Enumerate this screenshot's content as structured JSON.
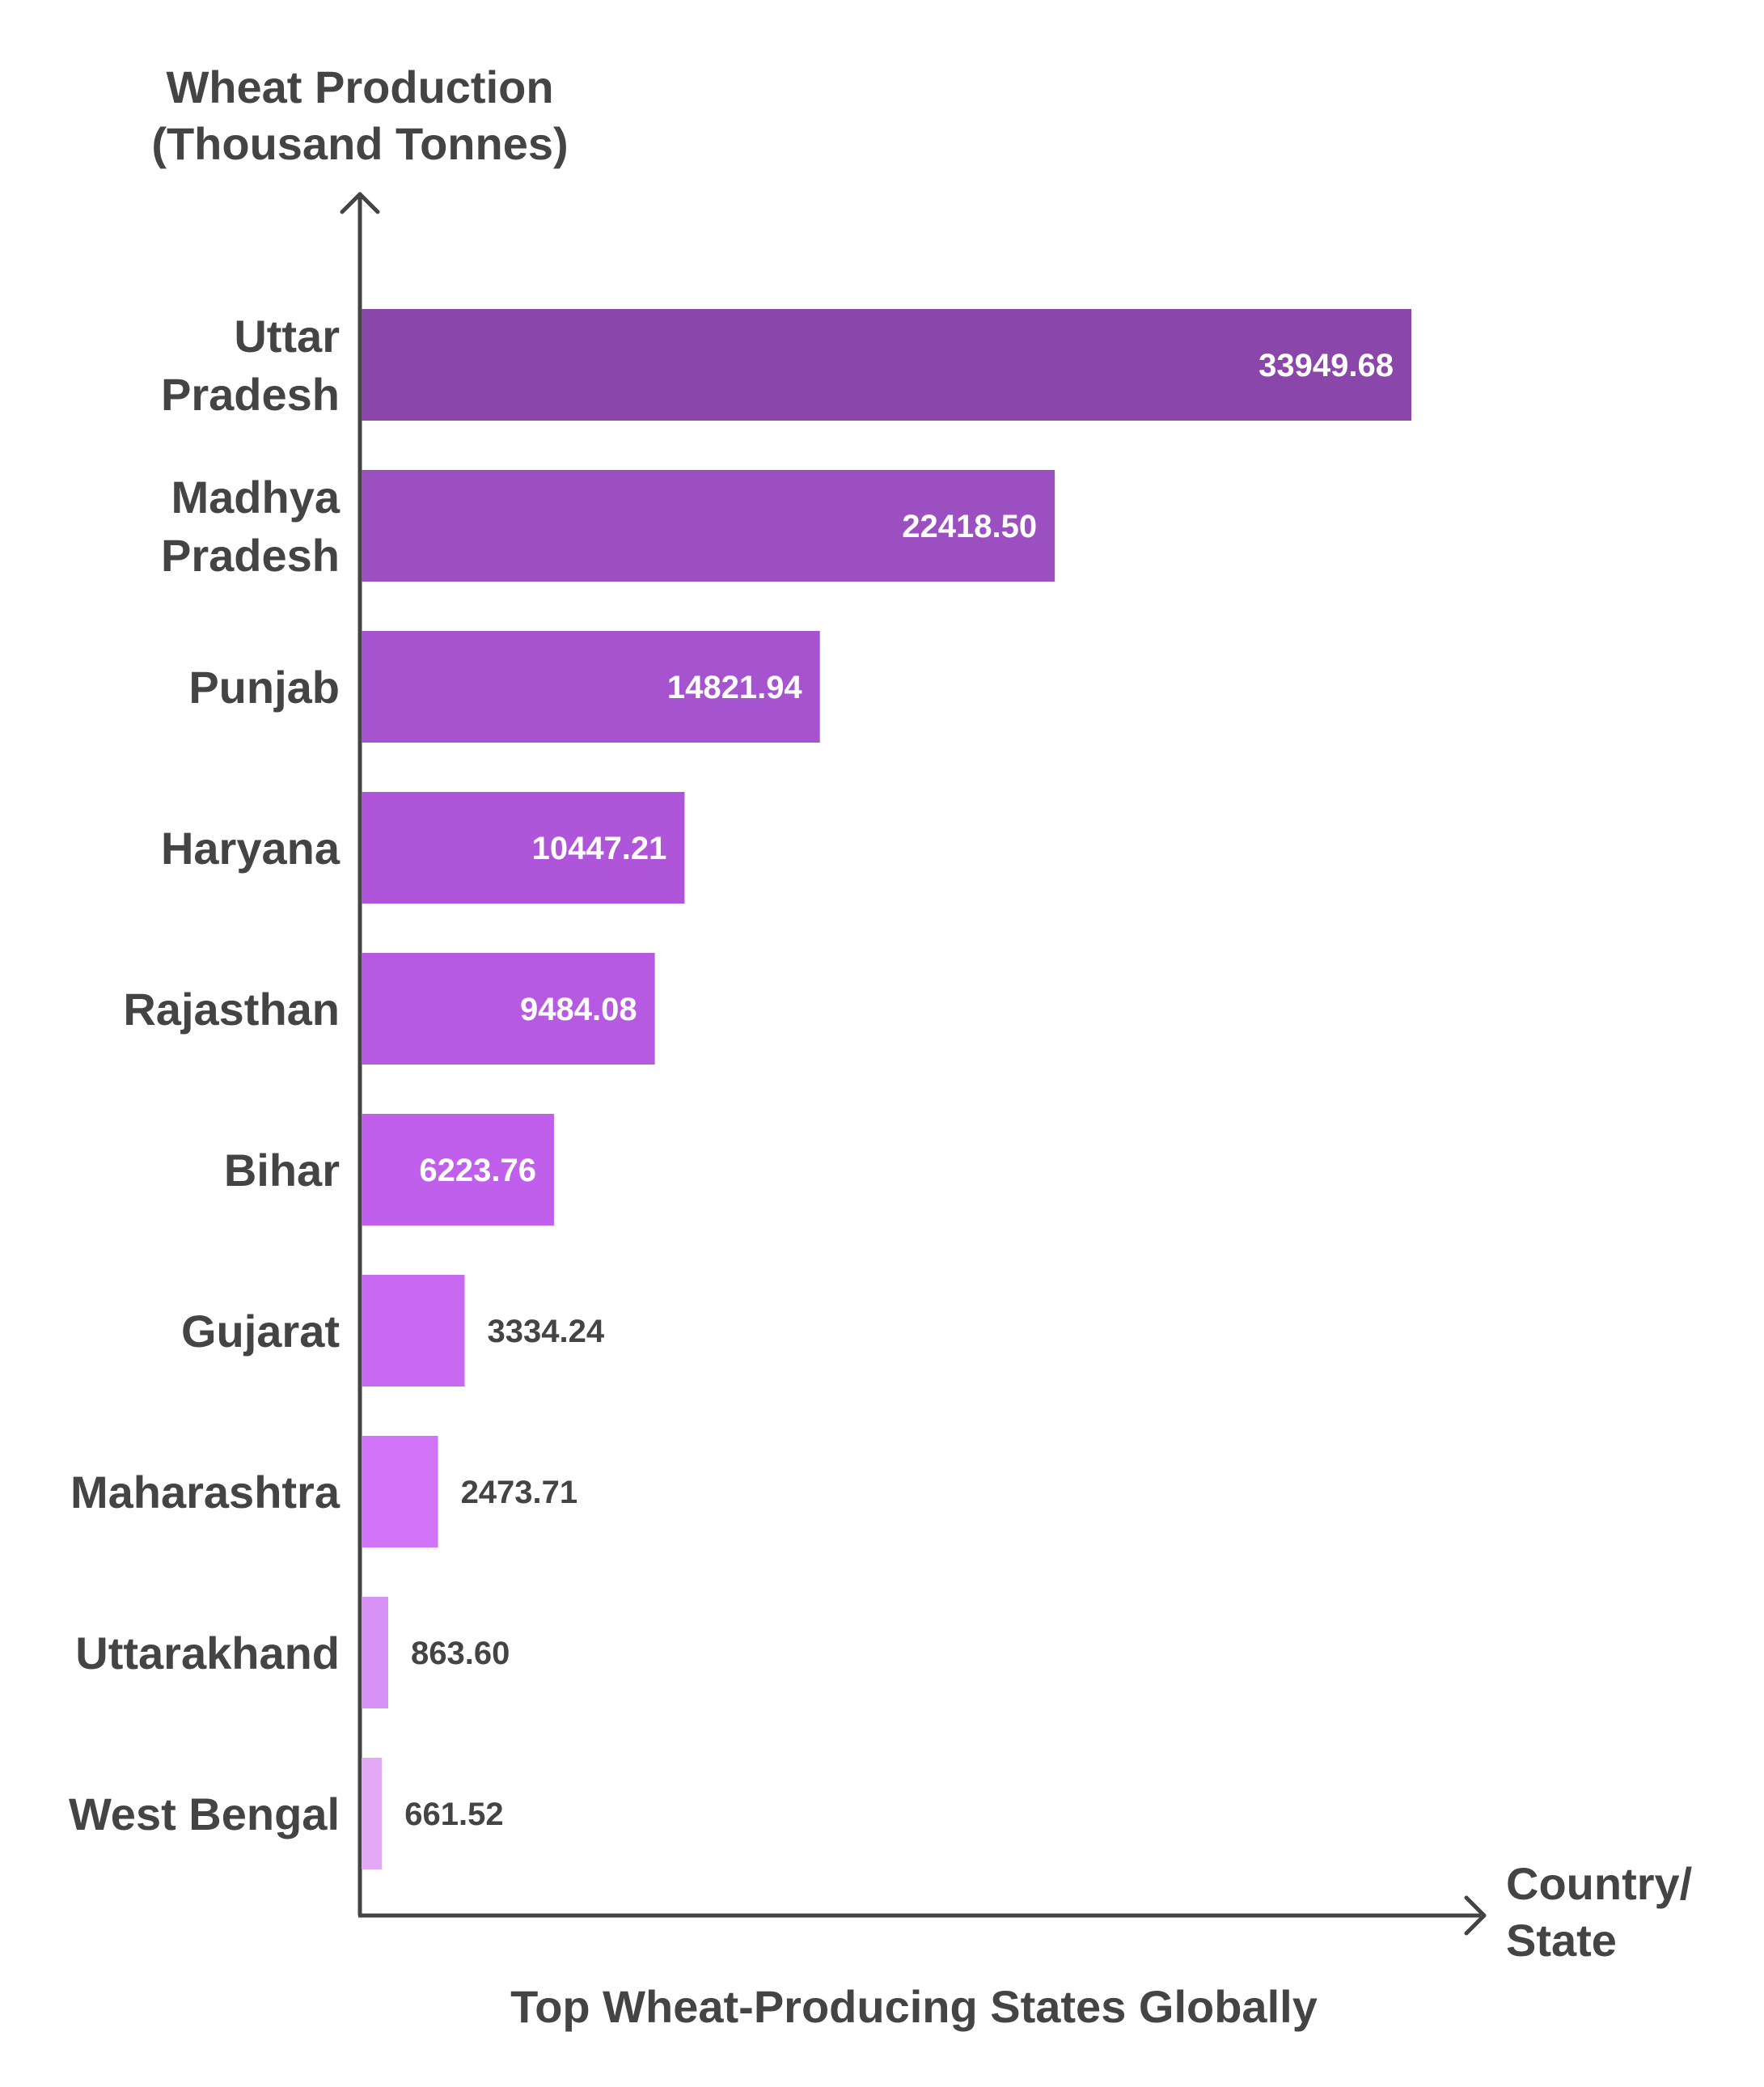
{
  "chart_data": {
    "type": "bar",
    "orientation": "horizontal",
    "title": "Top Wheat-Producing States Globally",
    "ylabel_lines": [
      "Wheat Production",
      "(Thousand Tonnes)"
    ],
    "xlabel_lines": [
      "Country/",
      "State"
    ],
    "categories": [
      {
        "lines": [
          "Uttar",
          "Pradesh"
        ]
      },
      {
        "lines": [
          "Madhya",
          "Pradesh"
        ]
      },
      {
        "lines": [
          "Punjab"
        ]
      },
      {
        "lines": [
          "Haryana"
        ]
      },
      {
        "lines": [
          "Rajasthan"
        ]
      },
      {
        "lines": [
          "Bihar"
        ]
      },
      {
        "lines": [
          "Gujarat"
        ]
      },
      {
        "lines": [
          "Maharashtra"
        ]
      },
      {
        "lines": [
          "Uttarakhand"
        ]
      },
      {
        "lines": [
          "West Bengal"
        ]
      }
    ],
    "values": [
      33949.68,
      22418.5,
      14821.94,
      10447.21,
      9484.08,
      6223.76,
      3334.24,
      2473.71,
      863.6,
      661.52
    ],
    "value_labels": [
      "33949.68",
      "22418.50",
      "14821.94",
      "10447.21",
      "9484.08",
      "6223.76",
      "3334.24",
      "2473.71",
      "863.60",
      "661.52"
    ],
    "bar_colors": [
      "#8a46a8",
      "#9b4fc0",
      "#a653cf",
      "#ae55da",
      "#b65ae2",
      "#c05fec",
      "#c869f2",
      "#d174f8",
      "#d993f6",
      "#e3a8f6"
    ],
    "grid": false,
    "legend": "none"
  },
  "colors": {
    "axis": "#444444",
    "text": "#444444",
    "label_inside": "#ffffff",
    "label_outside": "#444444"
  }
}
